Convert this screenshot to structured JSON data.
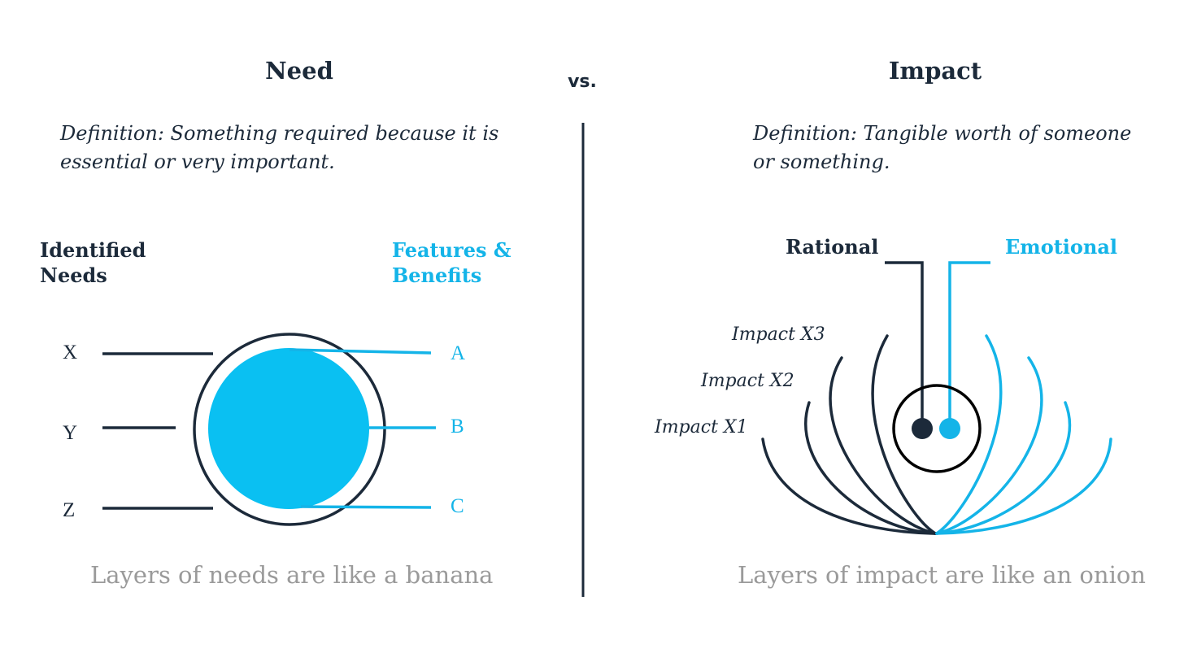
{
  "vs_label": "vs.",
  "need": {
    "title": "Need",
    "definition_line1": "Definition: Something required because it is",
    "definition_line2": "essential or very important.",
    "identified_label_line1": "Identified",
    "identified_label_line2": "Needs",
    "features_label_line1": "Features &",
    "features_label_line2": "Benefits",
    "needs": [
      "X",
      "Y",
      "Z"
    ],
    "features": [
      "A",
      "B",
      "C"
    ],
    "caption": "Layers of needs are like a banana"
  },
  "impact": {
    "title": "Impact",
    "definition_line1": "Definition: Tangible worth of someone",
    "definition_line2": "or something.",
    "rational_label": "Rational",
    "emotional_label": "Emotional",
    "layers": [
      "Impact X3",
      "Impact X2",
      "Impact X1"
    ],
    "caption": "Layers of impact are like an onion"
  },
  "colors": {
    "dark": "#1c2a3a",
    "accent": "#14b4e8",
    "caption_gray": "#9a9a9a"
  }
}
